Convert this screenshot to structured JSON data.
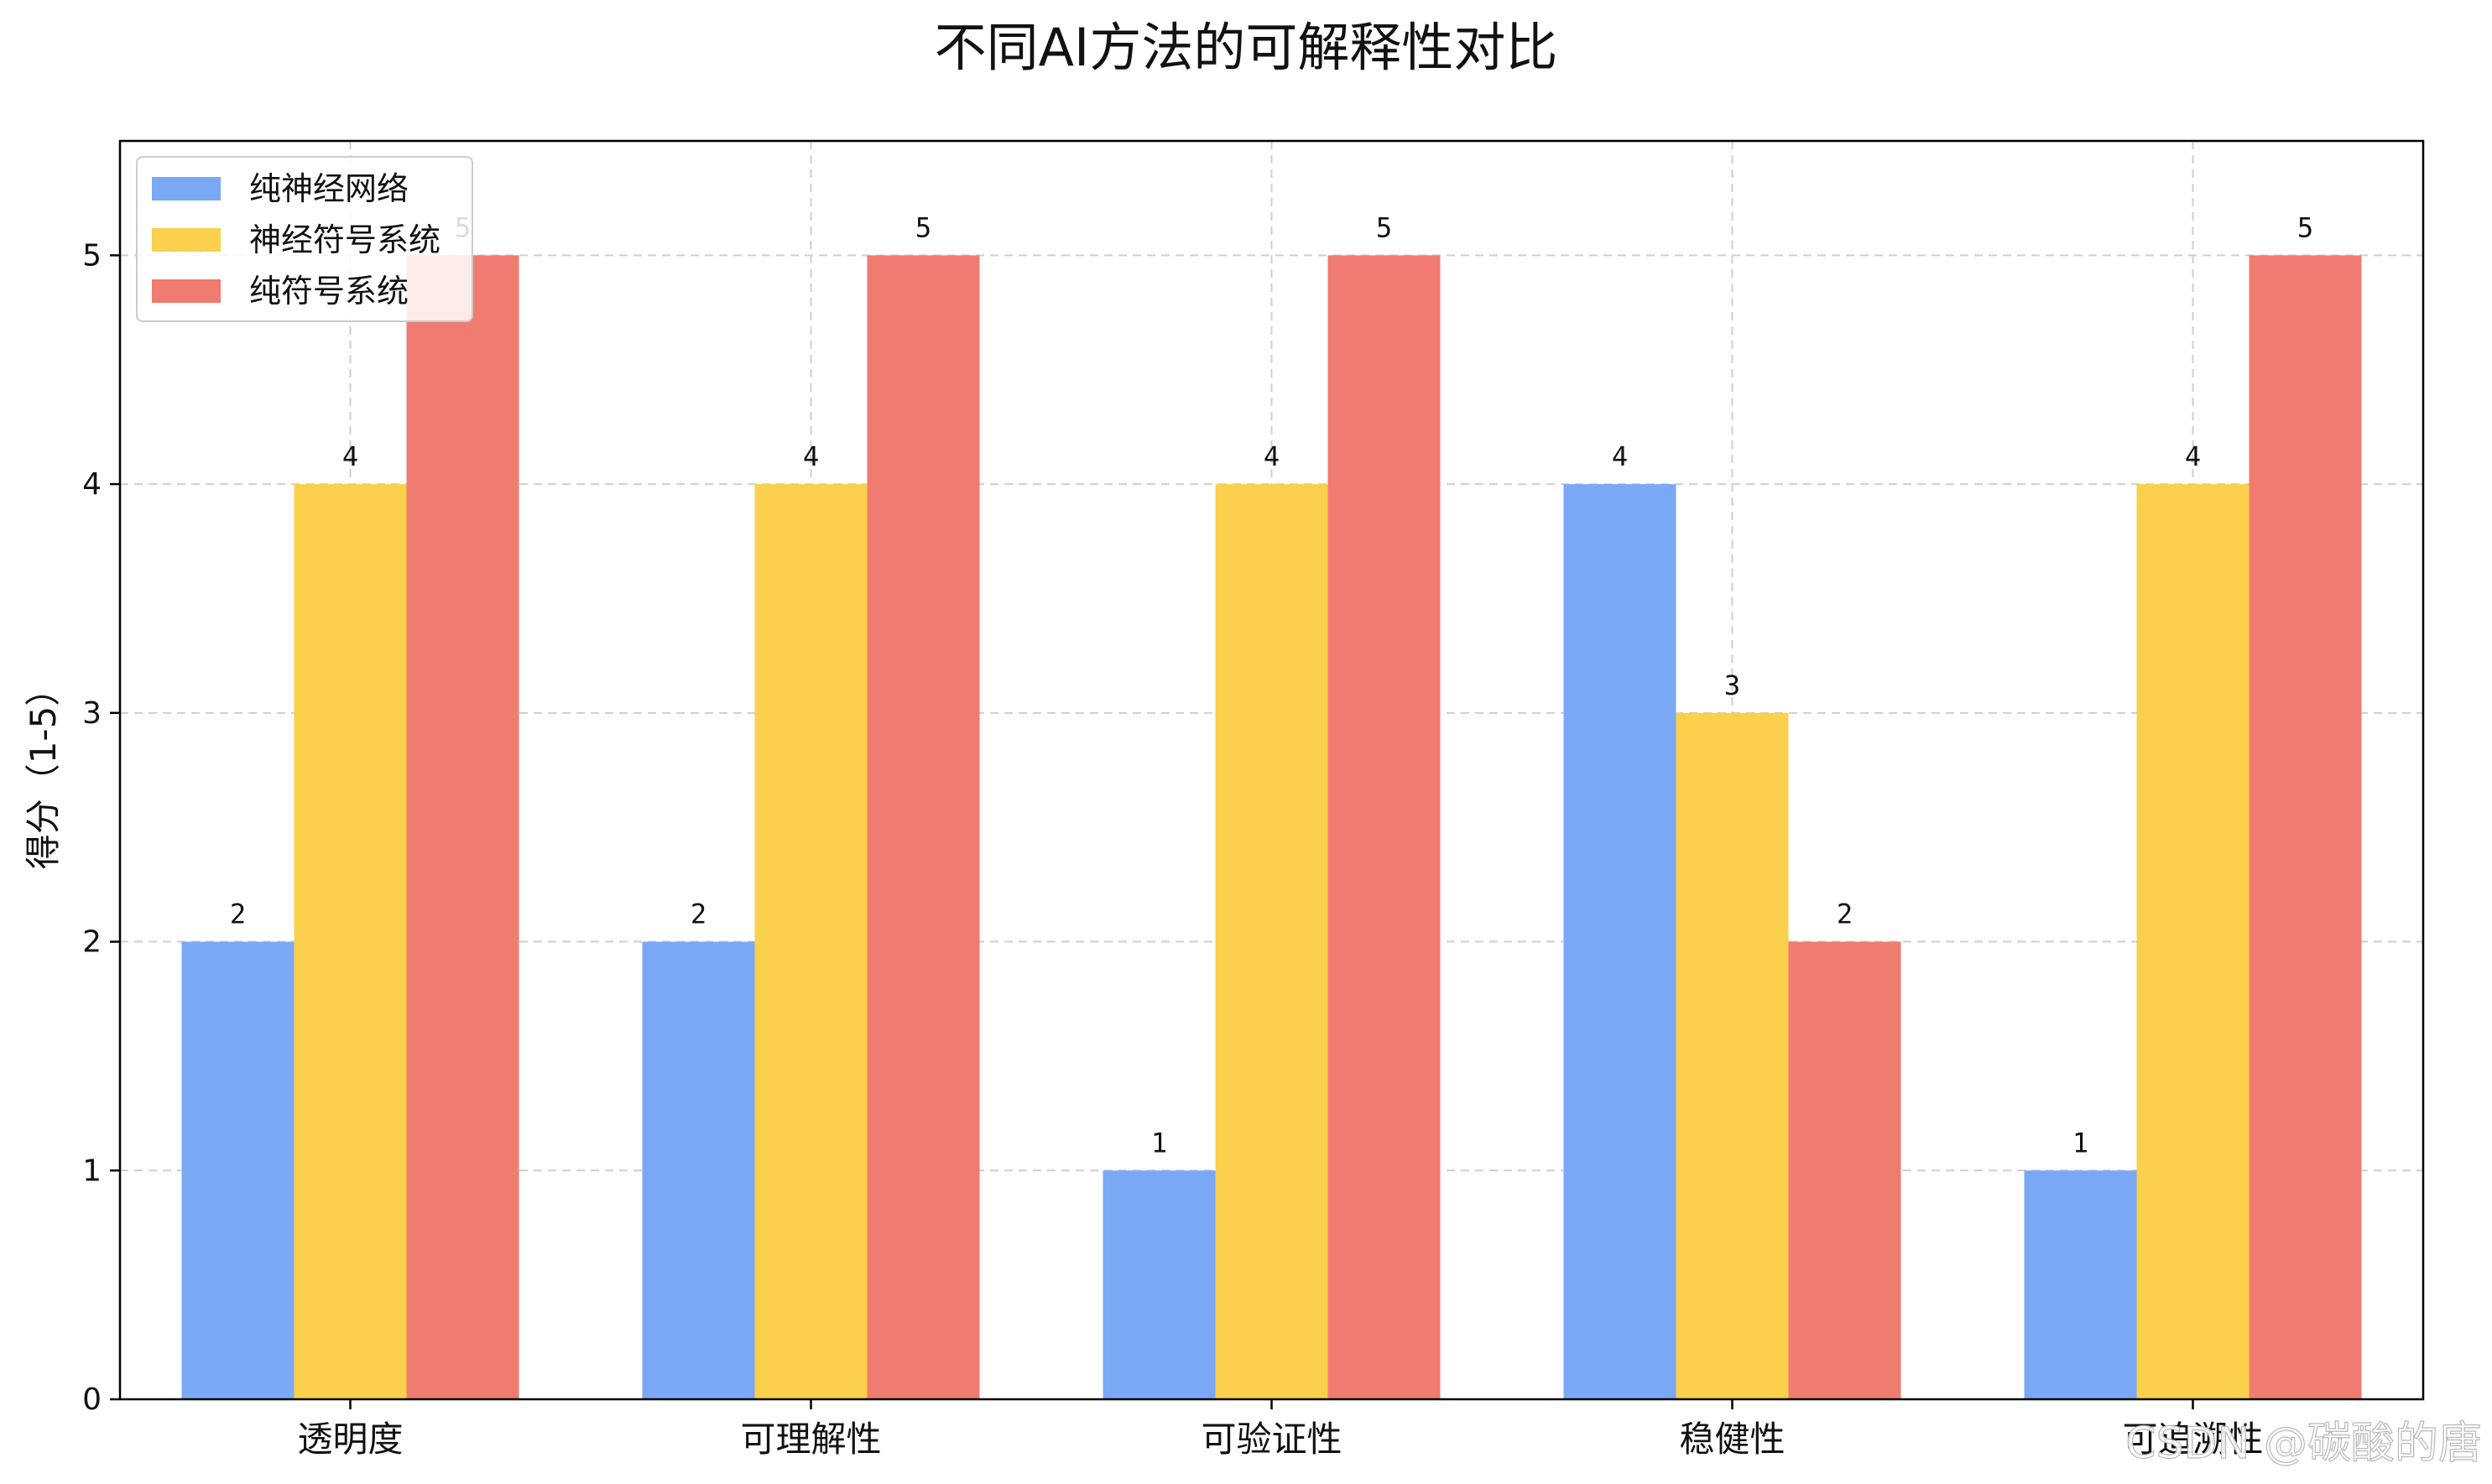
{
  "chart_data": {
    "type": "bar",
    "title": "不同AI方法的可解释性对比",
    "xlabel": "",
    "ylabel": "得分（1-5）",
    "categories": [
      "透明度",
      "可理解性",
      "可验证性",
      "稳健性",
      "可追溯性"
    ],
    "series": [
      {
        "name": "纯神经网络",
        "color": "#7BA8F5",
        "values": [
          2,
          2,
          1,
          4,
          1
        ]
      },
      {
        "name": "神经符号系统",
        "color": "#FAD04C",
        "values": [
          4,
          4,
          4,
          3,
          4
        ]
      },
      {
        "name": "纯符号系统",
        "color": "#F07B70",
        "values": [
          5,
          5,
          5,
          2,
          5
        ]
      }
    ],
    "ylim": [
      0,
      5.5
    ],
    "yticks": [
      "0",
      "1",
      "2",
      "3",
      "4",
      "5"
    ],
    "grid": true,
    "legend_position": "top-left",
    "value_labels": true
  },
  "watermark": "CSDN @碳酸的唐"
}
